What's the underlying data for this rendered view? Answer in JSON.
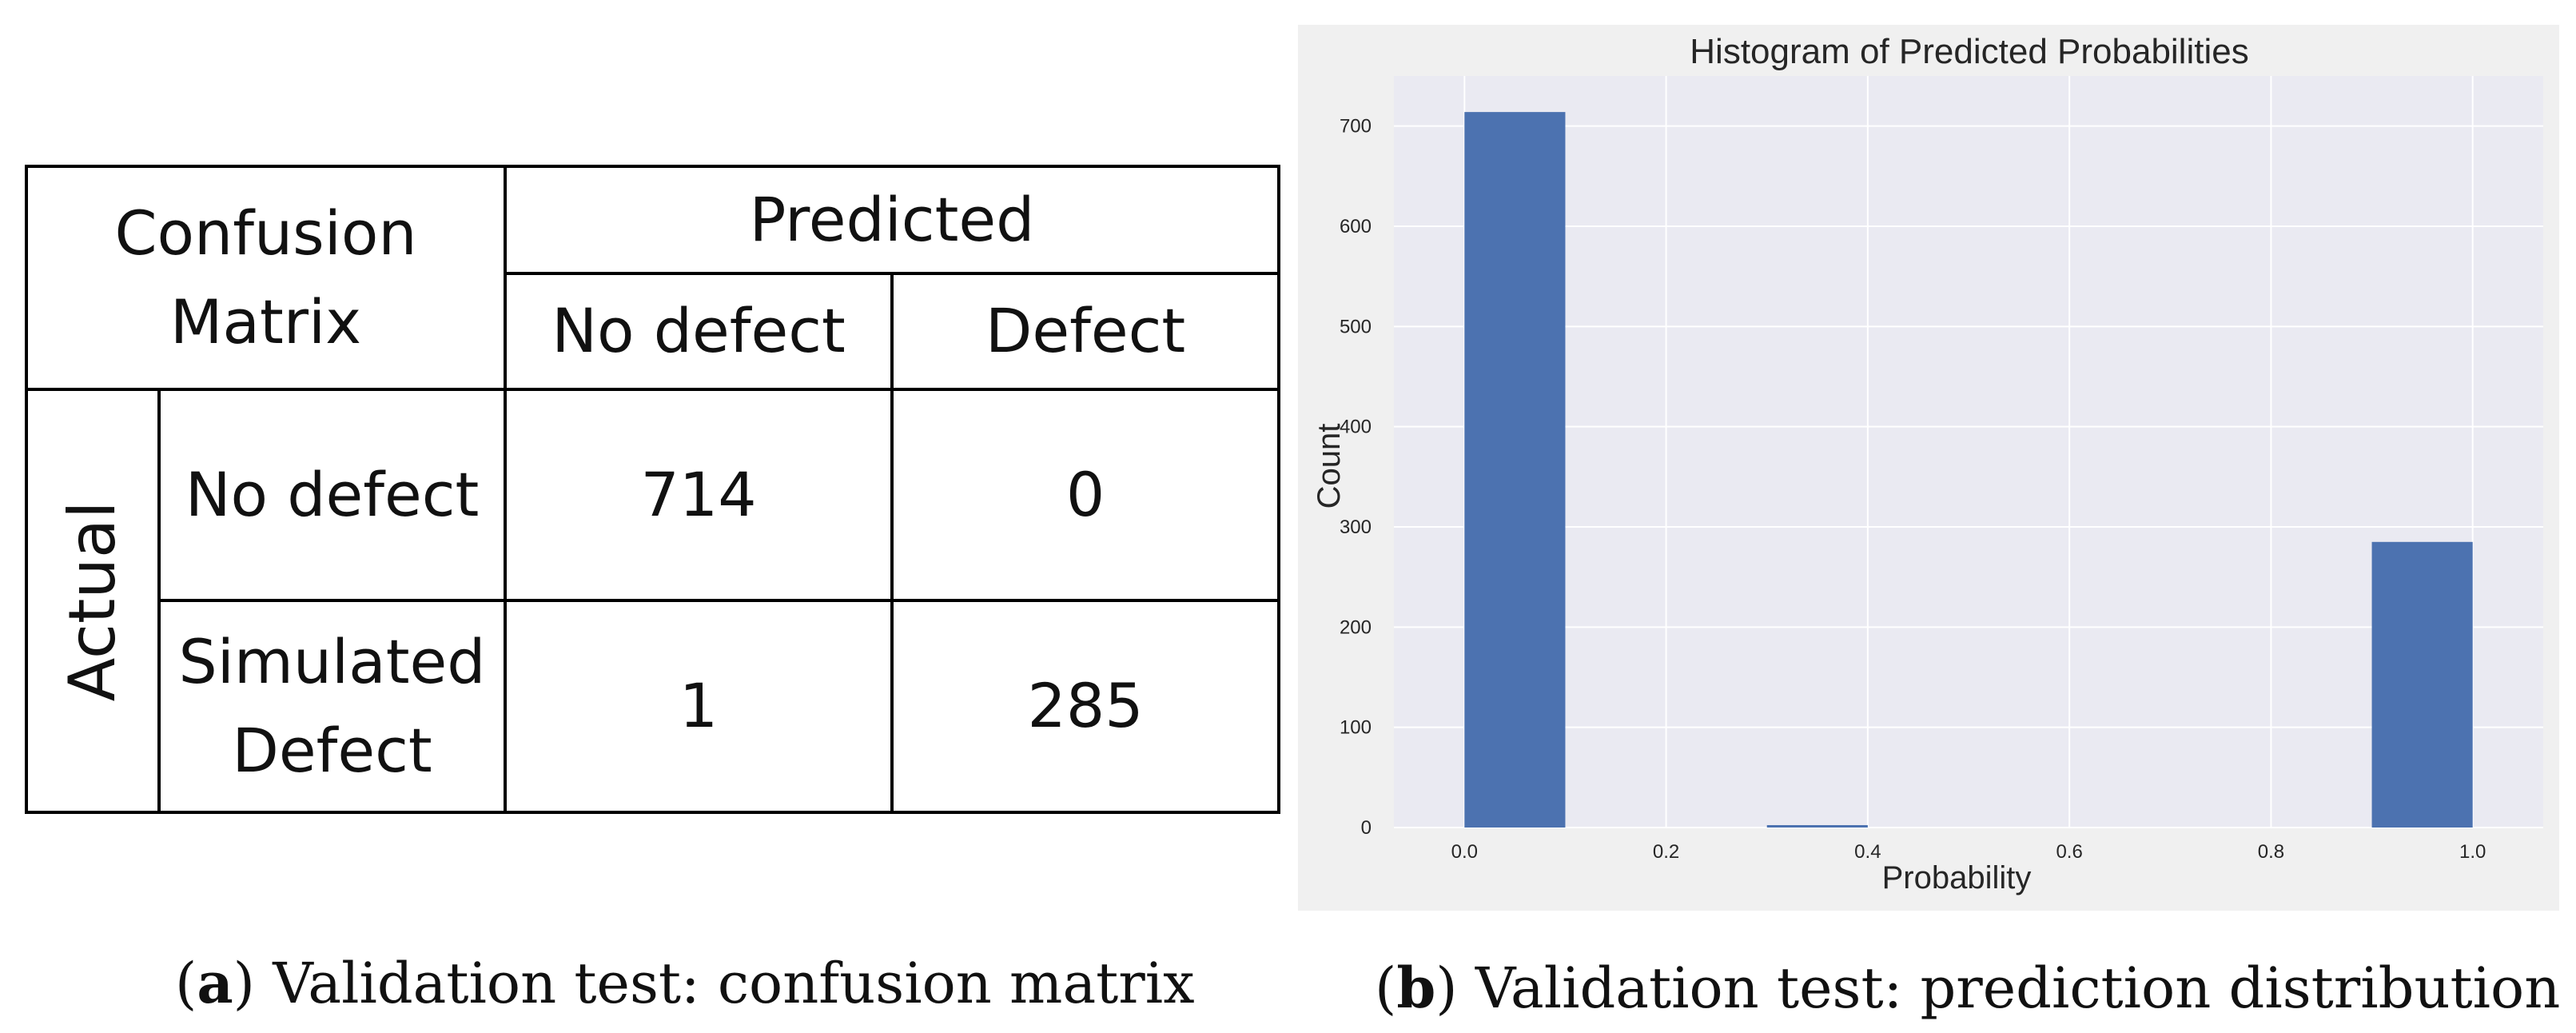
{
  "confusion_matrix": {
    "corner_line1": "Confusion",
    "corner_line2": "Matrix",
    "predicted_label": "Predicted",
    "actual_label": "Actual",
    "col_no_defect": "No defect",
    "col_defect": "Defect",
    "row1_label": "No defect",
    "row2_line1": "Simulated",
    "row2_line2": "Defect",
    "cells": {
      "r1c1": "714",
      "r1c2": "0",
      "r2c1": "1",
      "r2c2": "285"
    }
  },
  "chart_data": {
    "type": "bar",
    "title": "Histogram of Predicted Probabilities",
    "xlabel": "Probability",
    "ylabel": "Count",
    "xlim": [
      -0.07,
      1.07
    ],
    "ylim": [
      0,
      750
    ],
    "grid": true,
    "xticks": [
      0.0,
      0.2,
      0.4,
      0.6,
      0.8,
      1.0
    ],
    "xtick_labels": [
      "0.0",
      "0.2",
      "0.4",
      "0.6",
      "0.8",
      "1.0"
    ],
    "yticks": [
      0,
      100,
      200,
      300,
      400,
      500,
      600,
      700
    ],
    "ytick_labels": [
      "0",
      "100",
      "200",
      "300",
      "400",
      "500",
      "600",
      "700"
    ],
    "bins": [
      {
        "start": 0.0,
        "end": 0.1,
        "count": 714
      },
      {
        "start": 0.1,
        "end": 0.2,
        "count": 0
      },
      {
        "start": 0.2,
        "end": 0.3,
        "count": 0
      },
      {
        "start": 0.3,
        "end": 0.4,
        "count": 1
      },
      {
        "start": 0.4,
        "end": 0.5,
        "count": 0
      },
      {
        "start": 0.5,
        "end": 0.6,
        "count": 0
      },
      {
        "start": 0.6,
        "end": 0.7,
        "count": 0
      },
      {
        "start": 0.7,
        "end": 0.8,
        "count": 0
      },
      {
        "start": 0.8,
        "end": 0.9,
        "count": 0
      },
      {
        "start": 0.9,
        "end": 1.0,
        "count": 285
      }
    ],
    "colors": {
      "bar": "#4c72b0",
      "plot_bg": "#eaeaf2",
      "grid": "#ffffff",
      "panel_bg": "#f0f0f0",
      "text": "#262626"
    }
  },
  "captions": {
    "a_label": "a",
    "a_text": "Validation test: confusion matrix",
    "b_label": "b",
    "b_text": "Validation test: prediction distribution"
  }
}
